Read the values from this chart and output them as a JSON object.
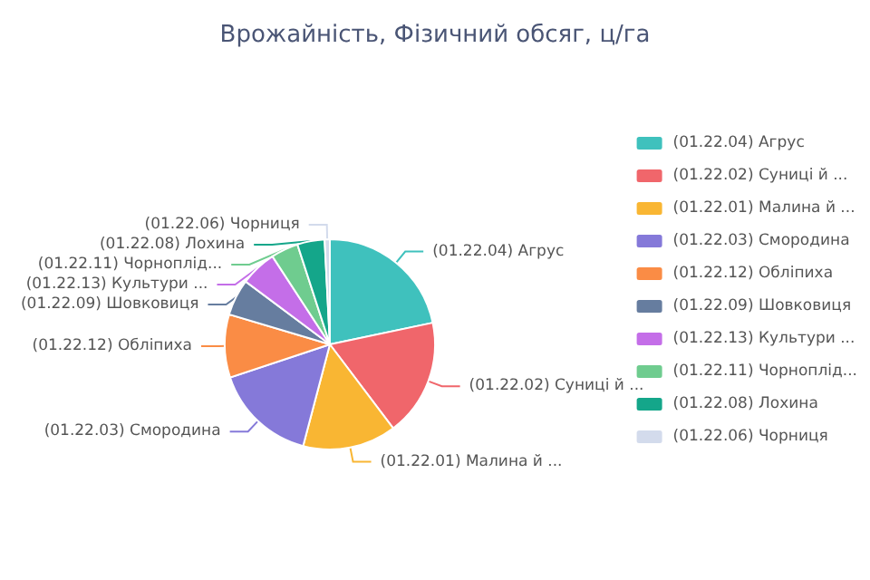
{
  "chart_data": {
    "type": "pie",
    "title": "Врожайність, Фізичний обсяг, ц/га",
    "categories": [
      "(01.22.04) Агрус",
      "(01.22.02) Суниці й ...",
      "(01.22.01) Малина й ...",
      "(01.22.03) Смородина",
      "(01.22.12) Обліпиха",
      "(01.22.09) Шовковиця",
      "(01.22.13) Культури ...",
      "(01.22.11) Чорноплід...",
      "(01.22.08) Лохина",
      "(01.22.06) Чорниця"
    ],
    "values": [
      21.7,
      18,
      14.4,
      15.8,
      9.7,
      5.6,
      5.6,
      4.2,
      4.2,
      0.8
    ],
    "colors": [
      "#3fc1bd",
      "#f0666b",
      "#f9b633",
      "#8579d9",
      "#fa8c45",
      "#667d9f",
      "#c46ee8",
      "#6fcc8f",
      "#14a68a",
      "#d3dbec"
    ],
    "legend": "right"
  }
}
